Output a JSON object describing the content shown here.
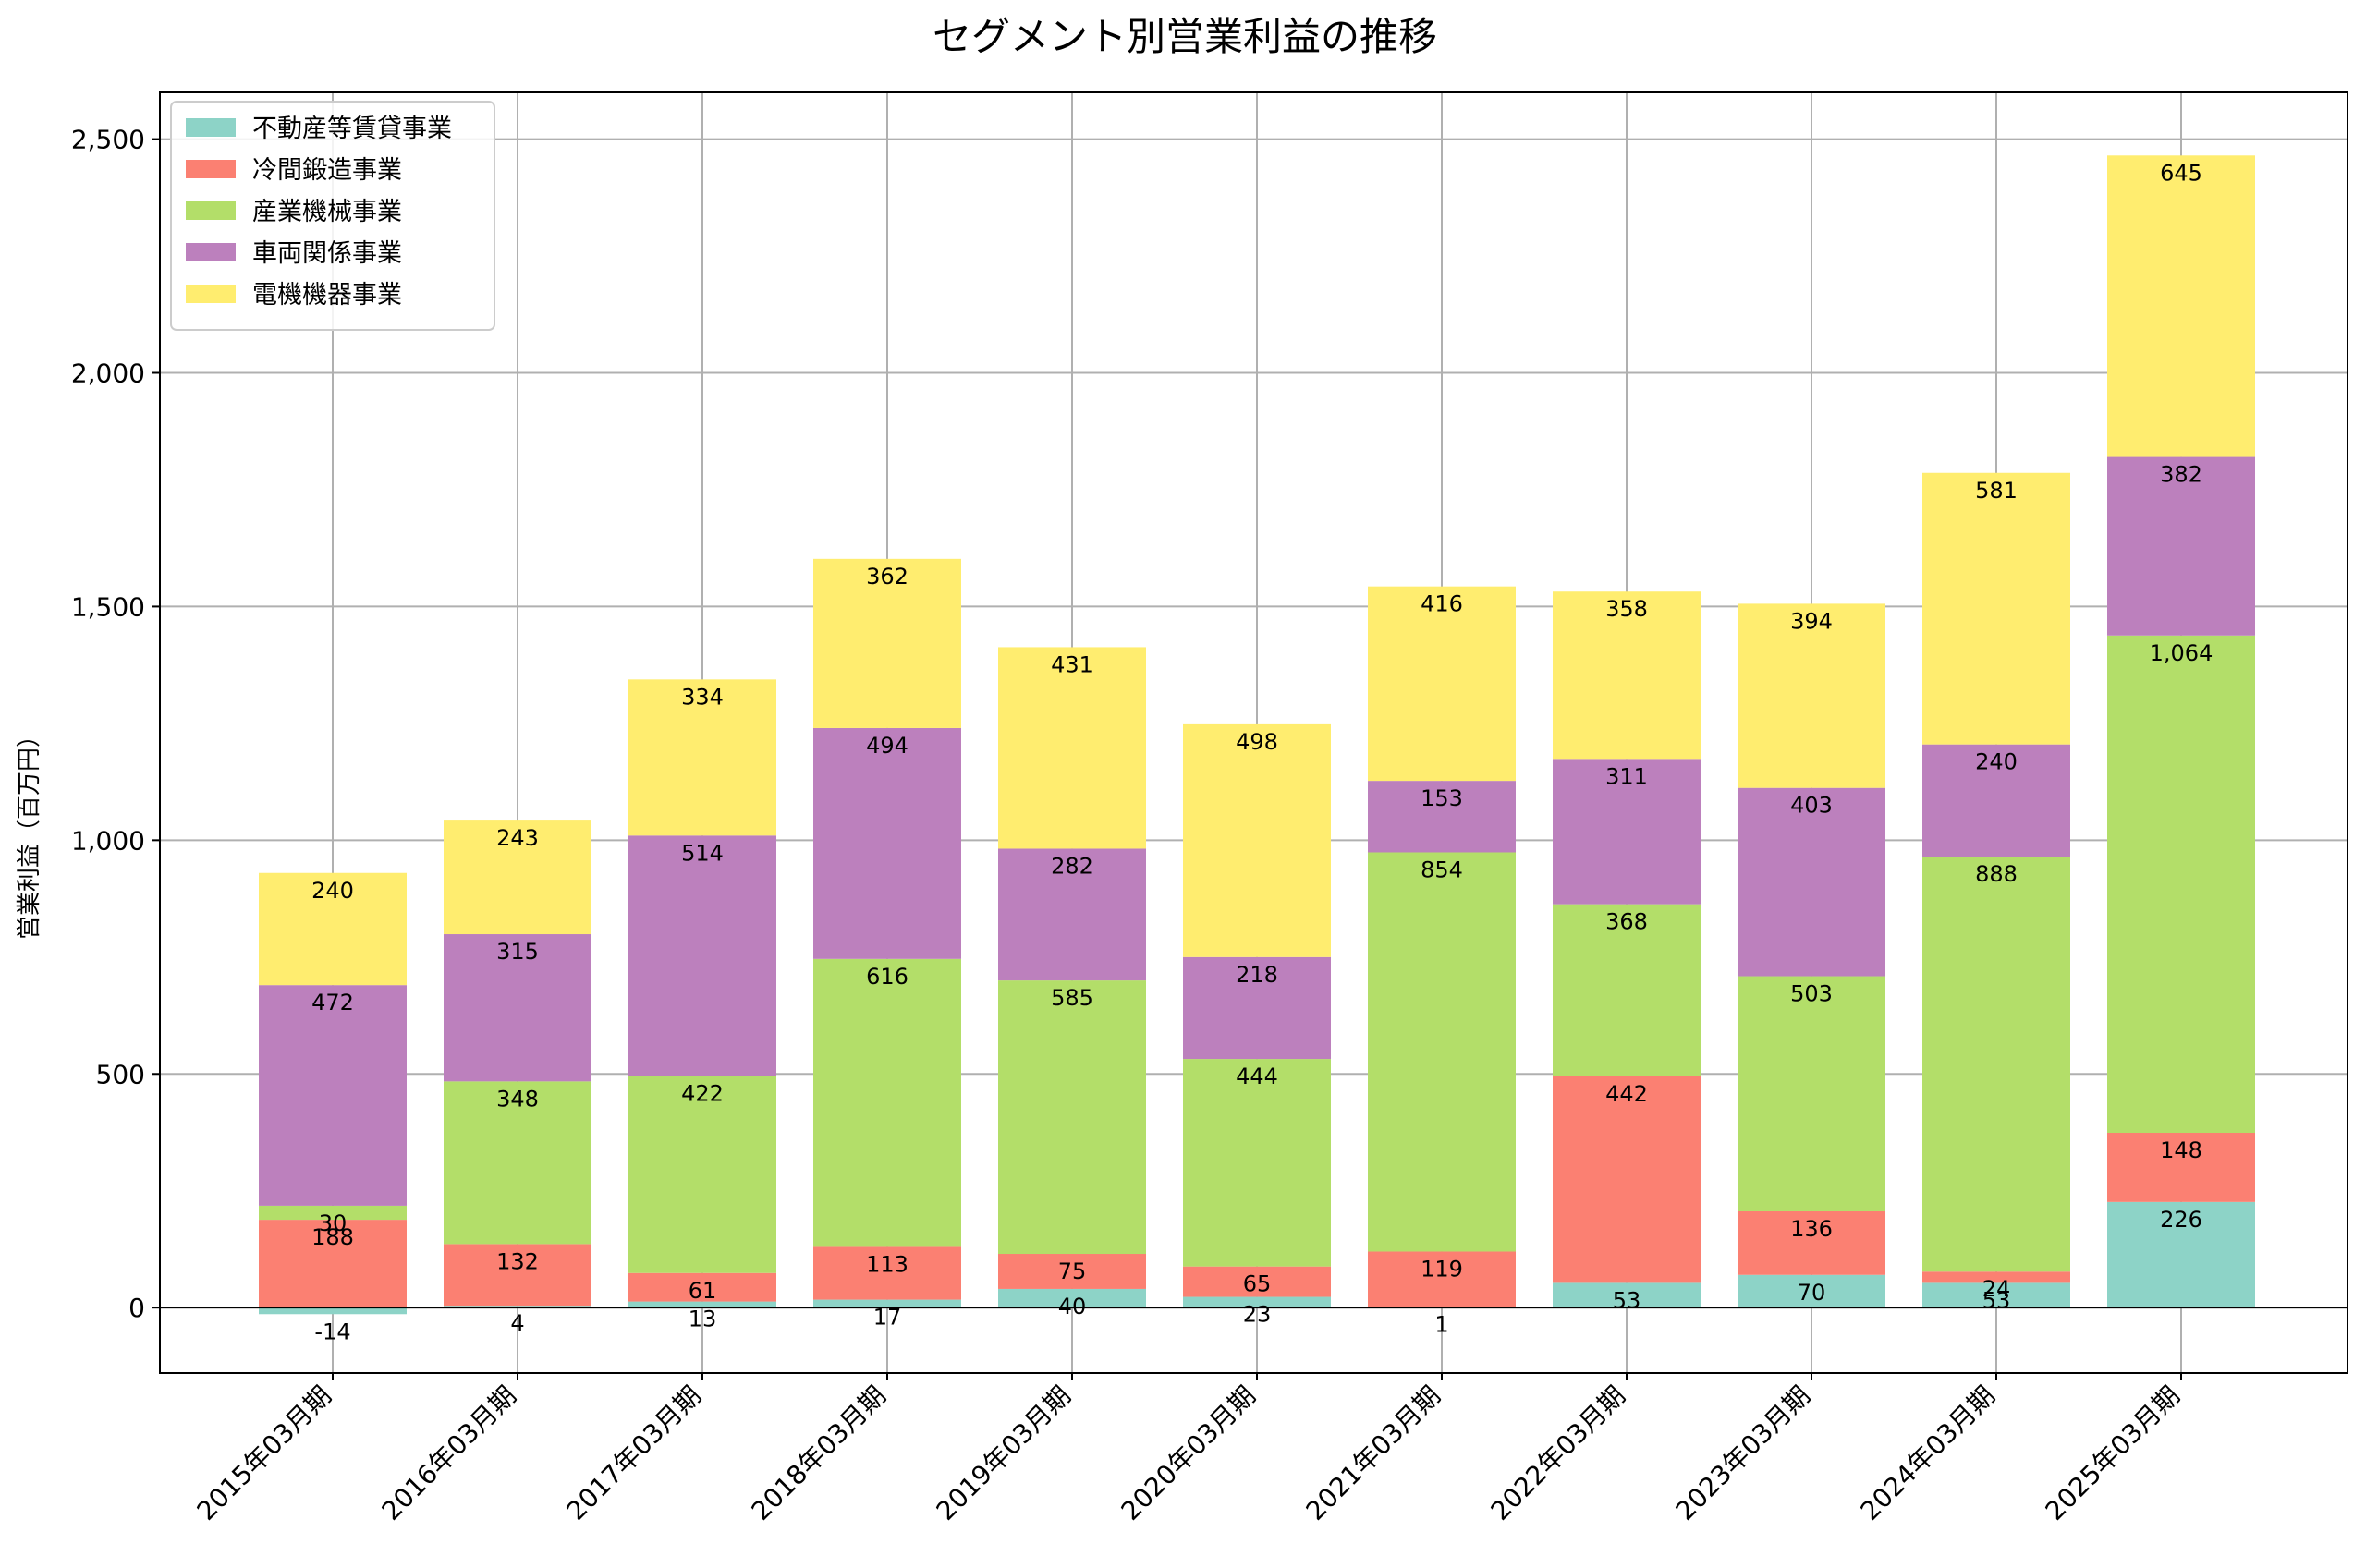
{
  "chart_data": {
    "type": "bar",
    "stacked": true,
    "title": "セグメント別営業利益の推移",
    "xlabel": "",
    "ylabel": "営業利益（百万円）",
    "ylim": [
      -140,
      2600
    ],
    "yticks": [
      0,
      500,
      1000,
      1500,
      2000,
      2500
    ],
    "ytick_labels": [
      "0",
      "500",
      "1,000",
      "1,500",
      "2,000",
      "2,500"
    ],
    "grid": true,
    "legend_position": "top-left",
    "categories": [
      "2015年03月期",
      "2016年03月期",
      "2017年03月期",
      "2018年03月期",
      "2019年03月期",
      "2020年03月期",
      "2021年03月期",
      "2022年03月期",
      "2023年03月期",
      "2024年03月期",
      "2025年03月期"
    ],
    "series": [
      {
        "name": "不動産等賃貸事業",
        "color": "#8dd3c7",
        "values": [
          -14,
          4,
          13,
          17,
          40,
          23,
          1,
          53,
          70,
          53,
          226
        ],
        "labels": [
          "-14",
          "4",
          "13",
          "17",
          "40",
          "23",
          "1",
          "53",
          "70",
          "53",
          "226"
        ]
      },
      {
        "name": "冷間鍛造事業",
        "color": "#fb8072",
        "values": [
          188,
          132,
          61,
          113,
          75,
          65,
          119,
          442,
          136,
          24,
          148
        ],
        "labels": [
          "188",
          "132",
          "61",
          "113",
          "75",
          "65",
          "119",
          "442",
          "136",
          "24",
          "148"
        ]
      },
      {
        "name": "産業機械事業",
        "color": "#b3de69",
        "values": [
          30,
          348,
          422,
          616,
          585,
          444,
          854,
          368,
          503,
          888,
          1064
        ],
        "labels": [
          "30",
          "348",
          "422",
          "616",
          "585",
          "444",
          "854",
          "368",
          "503",
          "888",
          "1,064"
        ]
      },
      {
        "name": "車両関係事業",
        "color": "#bc80bd",
        "values": [
          472,
          315,
          514,
          494,
          282,
          218,
          153,
          311,
          403,
          240,
          382
        ],
        "labels": [
          "472",
          "315",
          "514",
          "494",
          "282",
          "218",
          "153",
          "311",
          "403",
          "240",
          "382"
        ]
      },
      {
        "name": "電機機器事業",
        "color": "#ffed6f",
        "values": [
          240,
          243,
          334,
          362,
          431,
          498,
          416,
          358,
          394,
          581,
          645
        ],
        "labels": [
          "240",
          "243",
          "334",
          "362",
          "431",
          "498",
          "416",
          "358",
          "394",
          "581",
          "645"
        ]
      }
    ]
  }
}
